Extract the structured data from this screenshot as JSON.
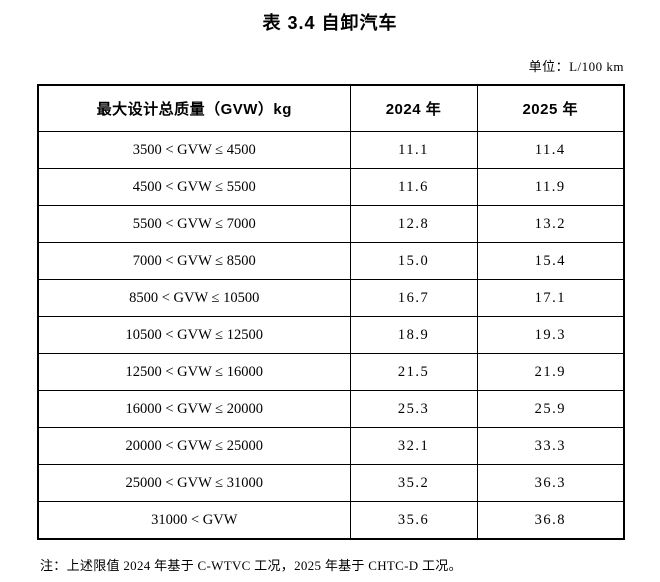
{
  "page": {
    "title": "表 3.4 自卸汽车",
    "unit_label": "单位：L/100 km",
    "note": "注：上述限值 2024 年基于 C-WTVC 工况，2025 年基于 CHTC-D 工况。"
  },
  "table": {
    "columns": [
      "最大设计总质量（GVW）kg",
      "2024 年",
      "2025 年"
    ],
    "rows": [
      {
        "range": "3500 < GVW ≤ 4500",
        "y2024": "11.1",
        "y2025": "11.4"
      },
      {
        "range": "4500 < GVW ≤ 5500",
        "y2024": "11.6",
        "y2025": "11.9"
      },
      {
        "range": "5500 < GVW ≤ 7000",
        "y2024": "12.8",
        "y2025": "13.2"
      },
      {
        "range": "7000 < GVW ≤ 8500",
        "y2024": "15.0",
        "y2025": "15.4"
      },
      {
        "range": "8500 < GVW ≤ 10500",
        "y2024": "16.7",
        "y2025": "17.1"
      },
      {
        "range": "10500 < GVW ≤ 12500",
        "y2024": "18.9",
        "y2025": "19.3"
      },
      {
        "range": "12500 < GVW ≤ 16000",
        "y2024": "21.5",
        "y2025": "21.9"
      },
      {
        "range": "16000 < GVW ≤ 20000",
        "y2024": "25.3",
        "y2025": "25.9"
      },
      {
        "range": "20000 < GVW ≤ 25000",
        "y2024": "32.1",
        "y2025": "33.3"
      },
      {
        "range": "25000 < GVW ≤ 31000",
        "y2024": "35.2",
        "y2025": "36.3"
      },
      {
        "range": "31000 < GVW",
        "y2024": "35.6",
        "y2025": "36.8"
      }
    ]
  }
}
